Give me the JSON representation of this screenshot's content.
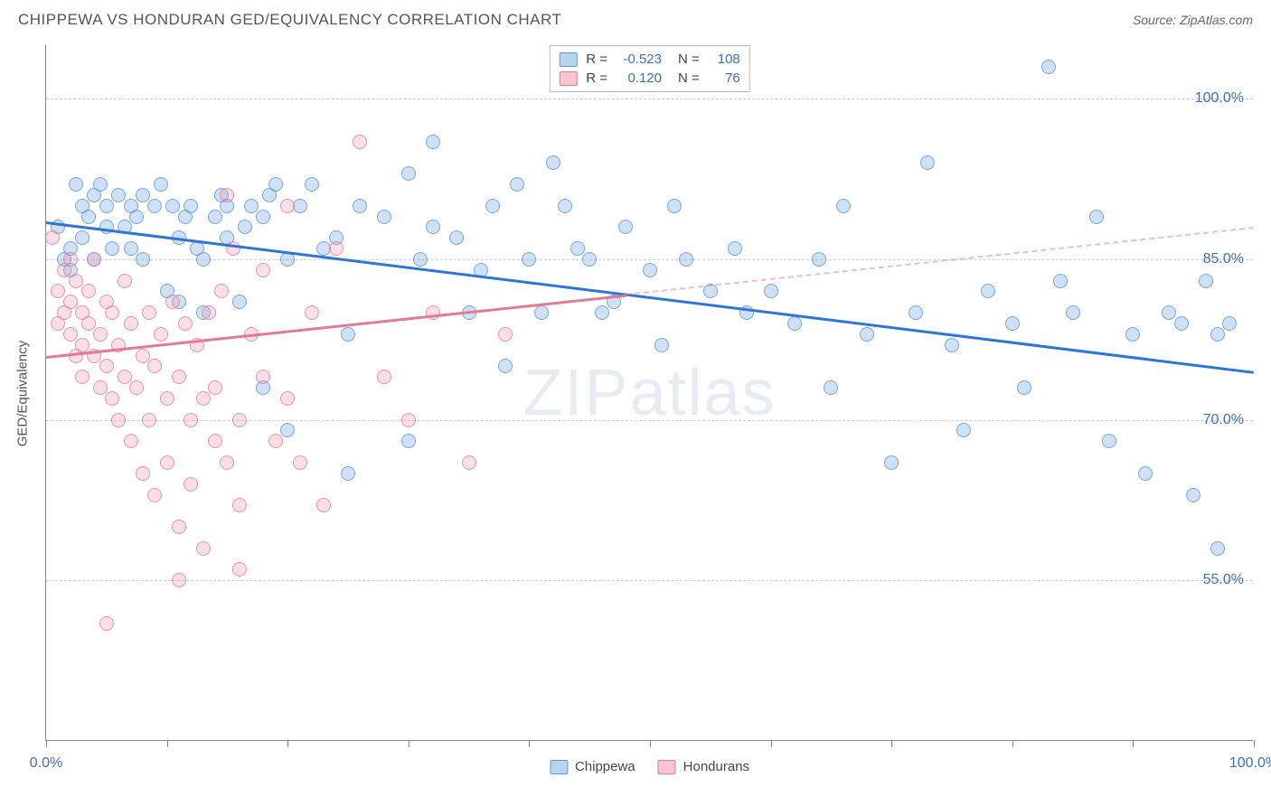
{
  "header": {
    "title": "CHIPPEWA VS HONDURAN GED/EQUIVALENCY CORRELATION CHART",
    "source": "Source: ZipAtlas.com"
  },
  "chart": {
    "type": "scatter",
    "ylabel": "GED/Equivalency",
    "background_color": "#ffffff",
    "grid_color": "#cccccc",
    "axis_color": "#888888",
    "xlim": [
      0,
      100
    ],
    "ylim": [
      40,
      105
    ],
    "yticks": [
      55.0,
      70.0,
      85.0,
      100.0
    ],
    "ytick_labels": [
      "55.0%",
      "70.0%",
      "85.0%",
      "100.0%"
    ],
    "xtick_positions": [
      0,
      10,
      20,
      30,
      40,
      50,
      60,
      70,
      80,
      90,
      100
    ],
    "xtick_labels": {
      "start": "0.0%",
      "end": "100.0%"
    },
    "watermark": "ZIPatlas",
    "legend_top": [
      {
        "swatch_fill": "#b8d4f0",
        "swatch_border": "#5a9bd5",
        "r_label": "R =",
        "r_val": "-0.523",
        "n_label": "N =",
        "n_val": "108"
      },
      {
        "swatch_fill": "#f7c6d0",
        "swatch_border": "#e27a96",
        "r_label": "R =",
        "r_val": "0.120",
        "n_label": "N =",
        "n_val": "76"
      }
    ],
    "legend_bottom": [
      {
        "swatch_fill": "#b8d4f0",
        "swatch_border": "#5a9bd5",
        "label": "Chippewa"
      },
      {
        "swatch_fill": "#f7c6d0",
        "swatch_border": "#e27a96",
        "label": "Hondurans"
      }
    ],
    "series": [
      {
        "name": "Chippewa",
        "color_fill": "rgba(120,170,225,0.35)",
        "color_border": "rgba(90,155,213,0.8)",
        "marker_radius": 8,
        "trend": {
          "color": "#2e75d6",
          "x1": 0,
          "y1": 88.5,
          "x2": 100,
          "y2": 74.5,
          "solid_to_x": 100
        },
        "points": [
          [
            1,
            88
          ],
          [
            1.5,
            85
          ],
          [
            2,
            84
          ],
          [
            2,
            86
          ],
          [
            2.5,
            92
          ],
          [
            3,
            90
          ],
          [
            3,
            87
          ],
          [
            3.5,
            89
          ],
          [
            4,
            91
          ],
          [
            4,
            85
          ],
          [
            4.5,
            92
          ],
          [
            5,
            88
          ],
          [
            5,
            90
          ],
          [
            5.5,
            86
          ],
          [
            6,
            91
          ],
          [
            6.5,
            88
          ],
          [
            7,
            90
          ],
          [
            7,
            86
          ],
          [
            7.5,
            89
          ],
          [
            8,
            91
          ],
          [
            8,
            85
          ],
          [
            9,
            90
          ],
          [
            9.5,
            92
          ],
          [
            10,
            82
          ],
          [
            10.5,
            90
          ],
          [
            11,
            81
          ],
          [
            11,
            87
          ],
          [
            11.5,
            89
          ],
          [
            12,
            90
          ],
          [
            12.5,
            86
          ],
          [
            13,
            85
          ],
          [
            13,
            80
          ],
          [
            14,
            89
          ],
          [
            14.5,
            91
          ],
          [
            15,
            87
          ],
          [
            15,
            90
          ],
          [
            16,
            81
          ],
          [
            16.5,
            88
          ],
          [
            17,
            90
          ],
          [
            18,
            73
          ],
          [
            18,
            89
          ],
          [
            18.5,
            91
          ],
          [
            19,
            92
          ],
          [
            20,
            69
          ],
          [
            20,
            85
          ],
          [
            21,
            90
          ],
          [
            22,
            92
          ],
          [
            23,
            86
          ],
          [
            24,
            87
          ],
          [
            25,
            65
          ],
          [
            25,
            78
          ],
          [
            26,
            90
          ],
          [
            28,
            89
          ],
          [
            30,
            93
          ],
          [
            30,
            68
          ],
          [
            31,
            85
          ],
          [
            32,
            88
          ],
          [
            32,
            96
          ],
          [
            34,
            87
          ],
          [
            35,
            80
          ],
          [
            36,
            84
          ],
          [
            37,
            90
          ],
          [
            38,
            75
          ],
          [
            39,
            92
          ],
          [
            40,
            85
          ],
          [
            41,
            80
          ],
          [
            42,
            94
          ],
          [
            43,
            90
          ],
          [
            44,
            86
          ],
          [
            45,
            85
          ],
          [
            46,
            80
          ],
          [
            47,
            81
          ],
          [
            48,
            88
          ],
          [
            50,
            84
          ],
          [
            51,
            77
          ],
          [
            52,
            90
          ],
          [
            53,
            85
          ],
          [
            55,
            82
          ],
          [
            57,
            86
          ],
          [
            58,
            80
          ],
          [
            60,
            82
          ],
          [
            62,
            79
          ],
          [
            64,
            85
          ],
          [
            65,
            73
          ],
          [
            66,
            90
          ],
          [
            68,
            78
          ],
          [
            70,
            66
          ],
          [
            72,
            80
          ],
          [
            73,
            94
          ],
          [
            75,
            77
          ],
          [
            76,
            69
          ],
          [
            78,
            82
          ],
          [
            80,
            79
          ],
          [
            81,
            73
          ],
          [
            83,
            103
          ],
          [
            84,
            83
          ],
          [
            85,
            80
          ],
          [
            87,
            89
          ],
          [
            88,
            68
          ],
          [
            90,
            78
          ],
          [
            91,
            65
          ],
          [
            93,
            80
          ],
          [
            94,
            79
          ],
          [
            95,
            63
          ],
          [
            96,
            83
          ],
          [
            97,
            78
          ],
          [
            97,
            58
          ],
          [
            98,
            79
          ]
        ]
      },
      {
        "name": "Hondurans",
        "color_fill": "rgba(240,150,175,0.30)",
        "color_border": "rgba(226,122,150,0.75)",
        "marker_radius": 8,
        "trend": {
          "color": "#e27a96",
          "x1": 0,
          "y1": 76,
          "x2": 100,
          "y2": 88,
          "solid_to_x": 48
        },
        "points": [
          [
            0.5,
            87
          ],
          [
            1,
            82
          ],
          [
            1,
            79
          ],
          [
            1.5,
            84
          ],
          [
            1.5,
            80
          ],
          [
            2,
            81
          ],
          [
            2,
            78
          ],
          [
            2,
            85
          ],
          [
            2.5,
            76
          ],
          [
            2.5,
            83
          ],
          [
            3,
            80
          ],
          [
            3,
            77
          ],
          [
            3,
            74
          ],
          [
            3.5,
            82
          ],
          [
            3.5,
            79
          ],
          [
            4,
            85
          ],
          [
            4,
            76
          ],
          [
            4.5,
            78
          ],
          [
            4.5,
            73
          ],
          [
            5,
            81
          ],
          [
            5,
            75
          ],
          [
            5.5,
            72
          ],
          [
            5.5,
            80
          ],
          [
            6,
            77
          ],
          [
            6,
            70
          ],
          [
            6.5,
            83
          ],
          [
            6.5,
            74
          ],
          [
            7,
            79
          ],
          [
            7,
            68
          ],
          [
            7.5,
            73
          ],
          [
            8,
            76
          ],
          [
            8,
            65
          ],
          [
            8.5,
            80
          ],
          [
            8.5,
            70
          ],
          [
            9,
            75
          ],
          [
            9,
            63
          ],
          [
            9.5,
            78
          ],
          [
            10,
            72
          ],
          [
            10,
            66
          ],
          [
            10.5,
            81
          ],
          [
            11,
            74
          ],
          [
            11,
            60
          ],
          [
            11.5,
            79
          ],
          [
            12,
            70
          ],
          [
            12,
            64
          ],
          [
            12.5,
            77
          ],
          [
            13,
            72
          ],
          [
            13,
            58
          ],
          [
            13.5,
            80
          ],
          [
            14,
            68
          ],
          [
            14,
            73
          ],
          [
            14.5,
            82
          ],
          [
            15,
            66
          ],
          [
            15,
            91
          ],
          [
            15.5,
            86
          ],
          [
            16,
            70
          ],
          [
            16,
            62
          ],
          [
            17,
            78
          ],
          [
            18,
            74
          ],
          [
            18,
            84
          ],
          [
            19,
            68
          ],
          [
            20,
            90
          ],
          [
            20,
            72
          ],
          [
            21,
            66
          ],
          [
            22,
            80
          ],
          [
            23,
            62
          ],
          [
            24,
            86
          ],
          [
            26,
            96
          ],
          [
            28,
            74
          ],
          [
            30,
            70
          ],
          [
            32,
            80
          ],
          [
            35,
            66
          ],
          [
            38,
            78
          ],
          [
            5,
            51
          ],
          [
            11,
            55
          ],
          [
            16,
            56
          ]
        ]
      }
    ]
  }
}
